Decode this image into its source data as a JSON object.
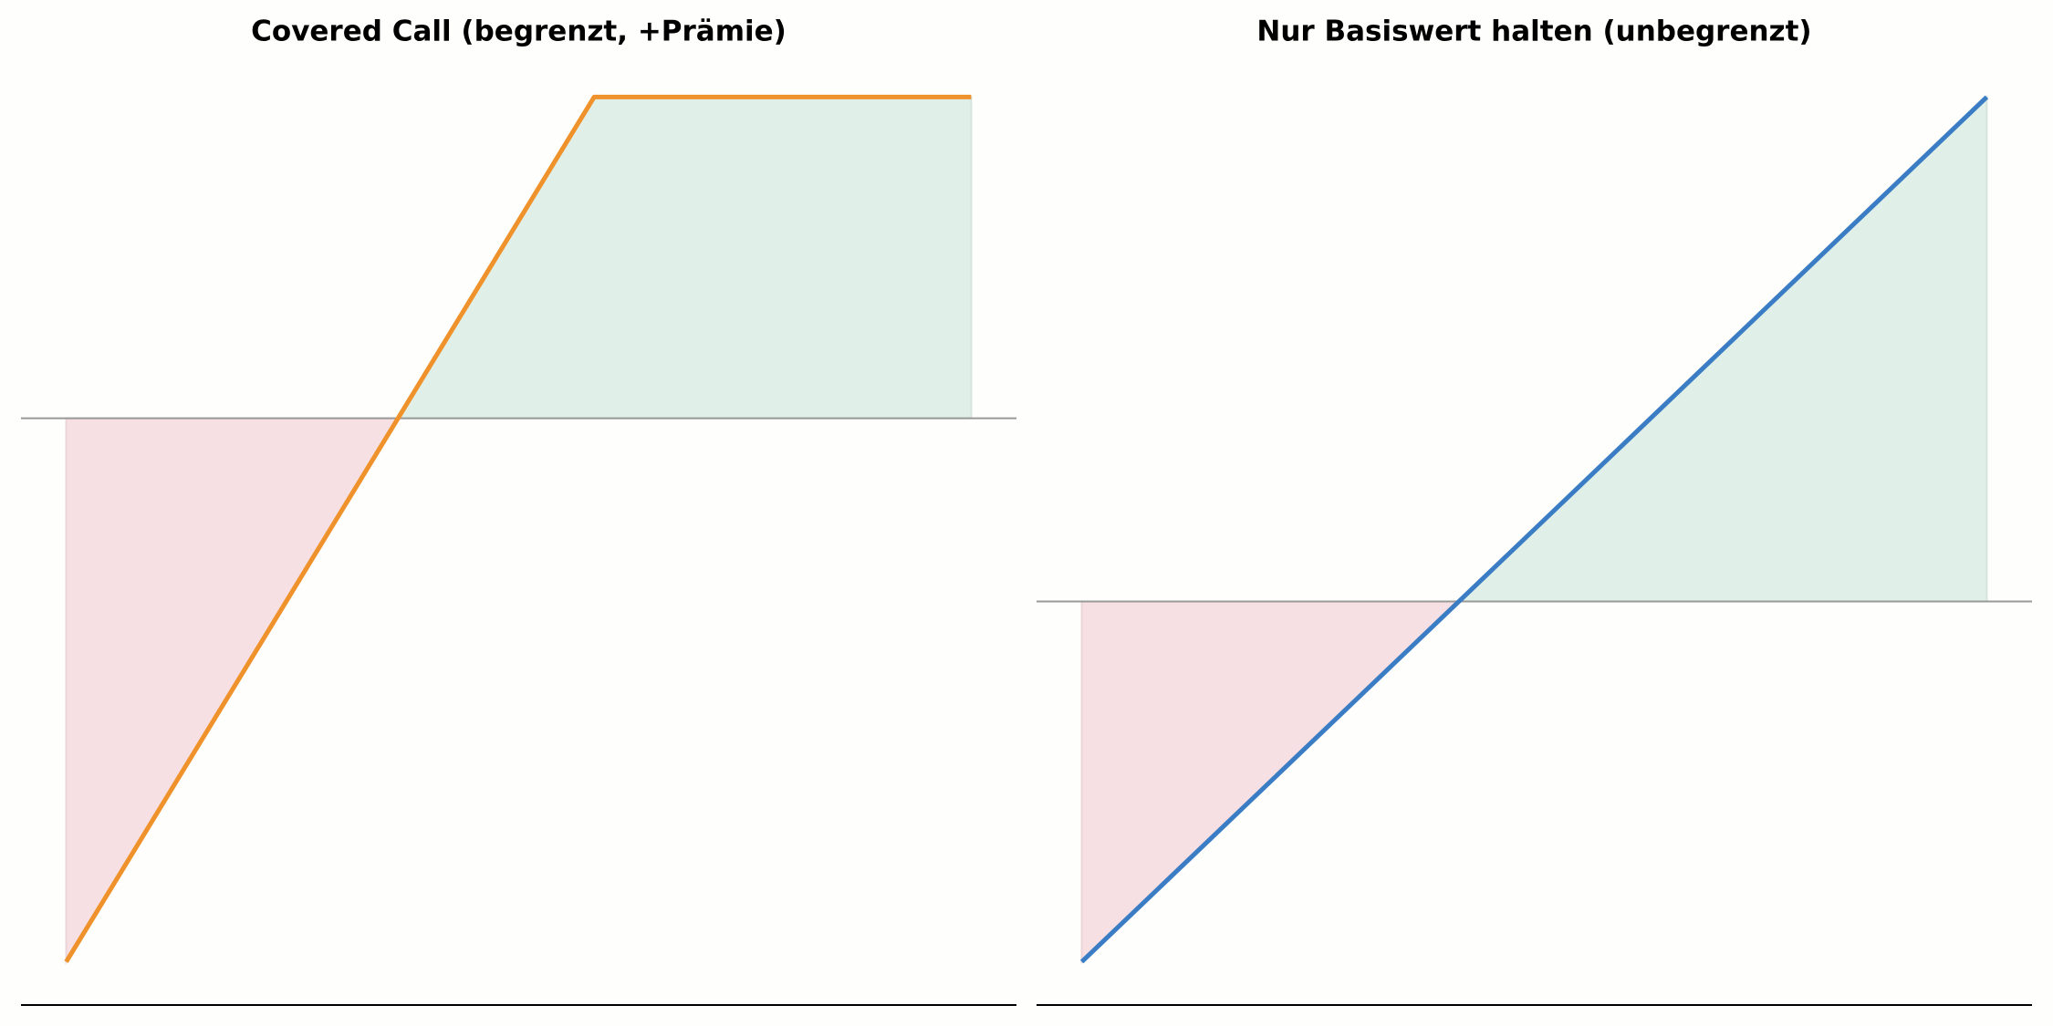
{
  "chart_data": [
    {
      "type": "line",
      "title": "Covered Call (begrenzt, +Prämie)",
      "x": [
        70,
        105,
        130
      ],
      "series": [
        {
          "color": "#f0922b",
          "values": [
            -22,
            13,
            13
          ]
        }
      ],
      "xlim": [
        67,
        133
      ],
      "ylim": [
        -23.75,
        14.75
      ],
      "hline": 0,
      "fill_positive_color": "#e0f0e8",
      "fill_negative_color": "#f7e0e3"
    },
    {
      "type": "line",
      "title": "Nur Basiswert halten (unbegrenzt)",
      "x": [
        70,
        130
      ],
      "series": [
        {
          "color": "#3b7dc4",
          "values": [
            -25,
            35
          ]
        }
      ],
      "xlim": [
        67,
        133
      ],
      "ylim": [
        -28,
        38
      ],
      "hline": 0,
      "fill_positive_color": "#e0f0e8",
      "fill_negative_color": "#f7e0e3"
    }
  ]
}
